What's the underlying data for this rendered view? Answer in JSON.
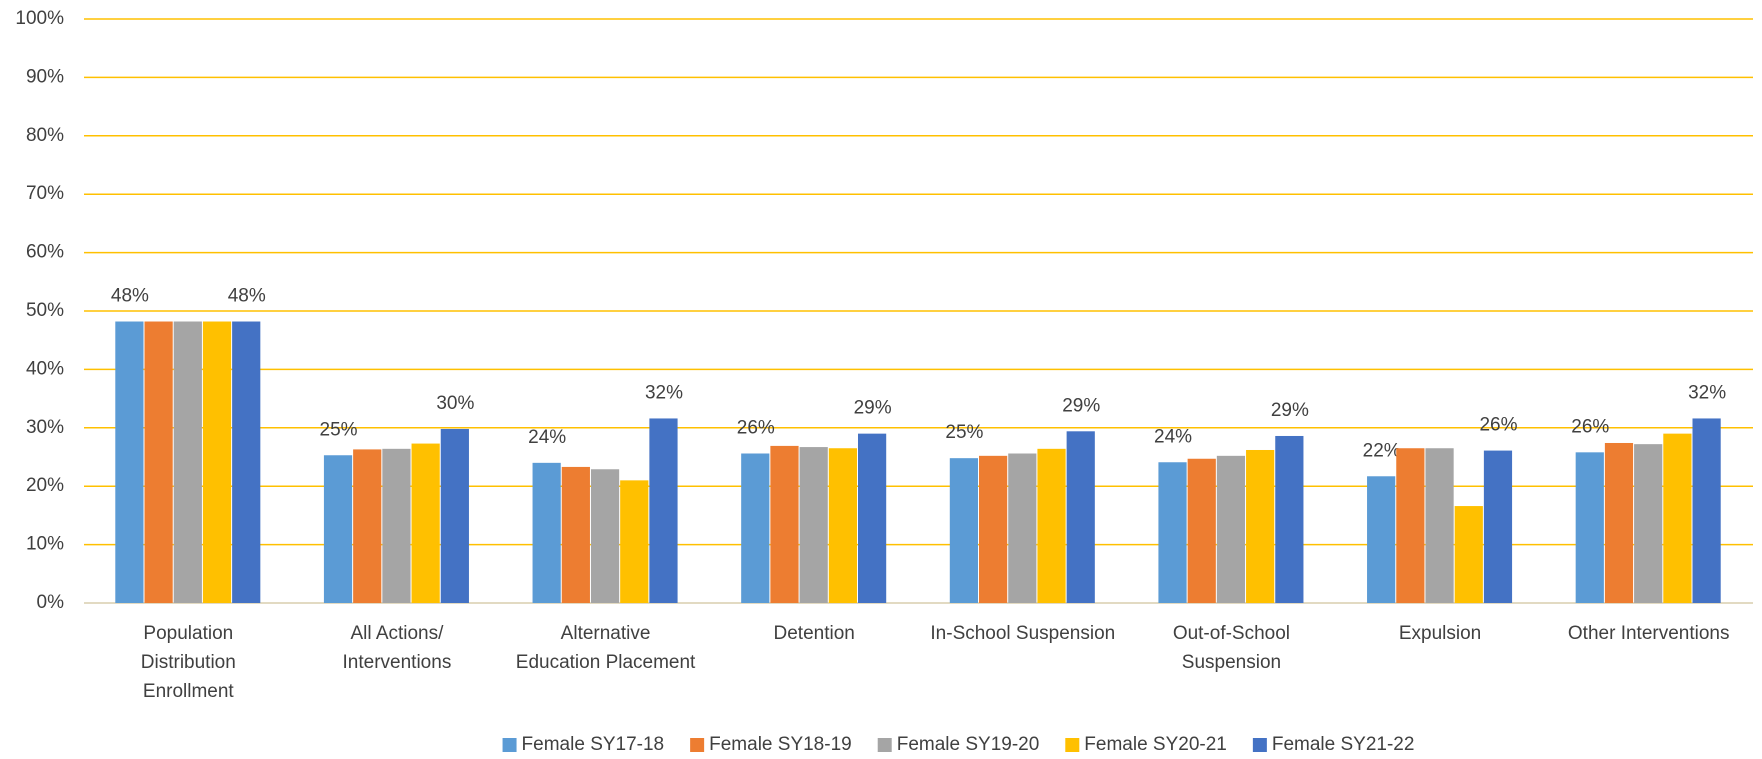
{
  "chart_data": {
    "type": "bar",
    "categories": [
      [
        "Population",
        "Distribution",
        "Enrollment"
      ],
      [
        "All Actions/",
        "Interventions"
      ],
      [
        "Alternative",
        "Education Placement"
      ],
      [
        "Detention"
      ],
      [
        "In-School Suspension"
      ],
      [
        "Out-of-School",
        "Suspension"
      ],
      [
        "Expulsion"
      ],
      [
        "Other Interventions"
      ]
    ],
    "series": [
      {
        "name": "Female SY17-18",
        "color": "#5B9BD5",
        "values": [
          48.2,
          25.3,
          24.0,
          25.6,
          24.8,
          24.1,
          21.7,
          25.8
        ],
        "value_labels": [
          "48%",
          "25%",
          "24%",
          "26%",
          "25%",
          "24%",
          "22%",
          "26%"
        ]
      },
      {
        "name": "Female SY18-19",
        "color": "#ED7D31",
        "values": [
          48.2,
          26.3,
          23.3,
          26.9,
          25.2,
          24.7,
          26.5,
          27.4
        ]
      },
      {
        "name": "Female SY19-20",
        "color": "#A5A5A5",
        "values": [
          48.2,
          26.4,
          22.9,
          26.7,
          25.6,
          25.2,
          26.5,
          27.2
        ]
      },
      {
        "name": "Female SY20-21",
        "color": "#FFC000",
        "values": [
          48.2,
          27.3,
          21.0,
          26.5,
          26.4,
          26.2,
          16.6,
          29.0
        ]
      },
      {
        "name": "Female SY21-22",
        "color": "#4472C4",
        "values": [
          48.2,
          29.8,
          31.6,
          29.0,
          29.4,
          28.6,
          26.1,
          31.6
        ],
        "value_labels": [
          "48%",
          "30%",
          "32%",
          "29%",
          "29%",
          "29%",
          "26%",
          "32%"
        ]
      }
    ],
    "ylim": [
      0,
      100
    ],
    "yticks": [
      {
        "value": 0,
        "label": "0%"
      },
      {
        "value": 10,
        "label": "10%"
      },
      {
        "value": 20,
        "label": "20%"
      },
      {
        "value": 30,
        "label": "30%"
      },
      {
        "value": 40,
        "label": "40%"
      },
      {
        "value": 50,
        "label": "50%"
      },
      {
        "value": 60,
        "label": "60%"
      },
      {
        "value": 70,
        "label": "70%"
      },
      {
        "value": 80,
        "label": "80%"
      },
      {
        "value": 90,
        "label": "90%"
      },
      {
        "value": 100,
        "label": "100%"
      }
    ],
    "grid": true,
    "grid_color": "#FFC000",
    "legend": "bottom"
  }
}
